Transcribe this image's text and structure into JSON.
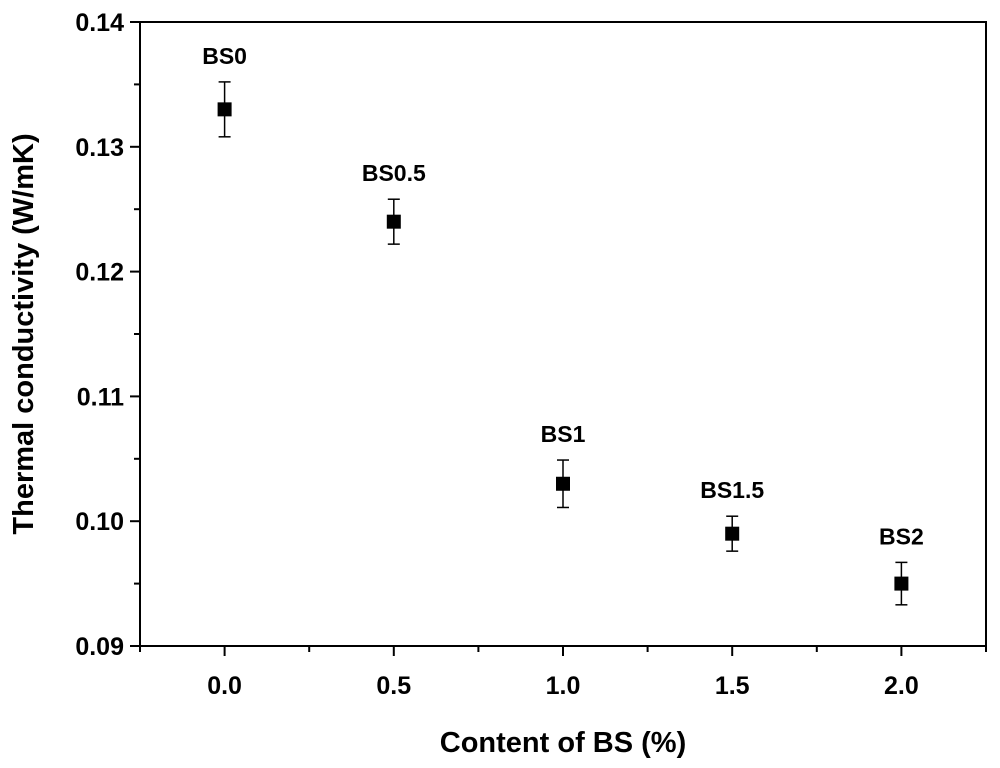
{
  "chart_data": {
    "type": "scatter",
    "xlabel": "Content of BS (%)",
    "ylabel": "Thermal conductivity (W/mK)",
    "xlim": [
      -0.25,
      2.25
    ],
    "ylim": [
      0.09,
      0.14
    ],
    "x_ticks": [
      "0.0",
      "0.5",
      "1.0",
      "1.5",
      "2.0"
    ],
    "y_ticks": [
      "0.09",
      "0.10",
      "0.11",
      "0.12",
      "0.13",
      "0.14"
    ],
    "grid": false,
    "legend": "none",
    "marker": "filled-square",
    "color": "#000000",
    "points": [
      {
        "label": "BS0",
        "x": 0.0,
        "y": 0.133,
        "err": 0.0022
      },
      {
        "label": "BS0.5",
        "x": 0.5,
        "y": 0.124,
        "err": 0.0018
      },
      {
        "label": "BS1",
        "x": 1.0,
        "y": 0.103,
        "err": 0.0019
      },
      {
        "label": "BS1.5",
        "x": 1.5,
        "y": 0.099,
        "err": 0.0014
      },
      {
        "label": "BS2",
        "x": 2.0,
        "y": 0.095,
        "err": 0.0017
      }
    ]
  }
}
